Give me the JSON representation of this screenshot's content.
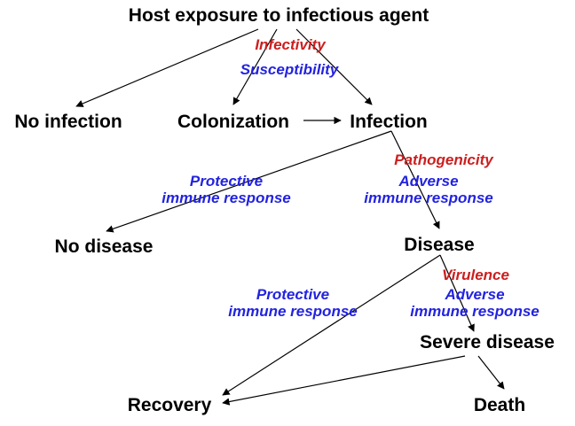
{
  "colors": {
    "node_text": "#000000",
    "factor_red": "#cc1f1f",
    "response_blue": "#2323e0",
    "arrow": "#000000"
  },
  "nodes": {
    "exposure": "Host exposure to infectious agent",
    "no_infection": "No infection",
    "colonization": "Colonization",
    "infection": "Infection",
    "no_disease": "No disease",
    "disease": "Disease",
    "severe_disease": "Severe disease",
    "recovery": "Recovery",
    "death": "Death"
  },
  "labels": {
    "infectivity": "Infectivity",
    "susceptibility": "Susceptibility",
    "pathogenicity": "Pathogenicity",
    "virulence": "Virulence",
    "protective_1": [
      "Protective",
      "immune response"
    ],
    "adverse_1": [
      "Adverse",
      "immune response"
    ],
    "protective_2": [
      "Protective",
      "immune response"
    ],
    "adverse_2": [
      "Adverse",
      "immune  response"
    ]
  },
  "edges": [
    {
      "from": "exposure",
      "to": "no_infection"
    },
    {
      "from": "exposure",
      "to": "colonization"
    },
    {
      "from": "exposure",
      "to": "infection"
    },
    {
      "from": "colonization",
      "to": "infection"
    },
    {
      "from": "infection",
      "to": "no_disease"
    },
    {
      "from": "infection",
      "to": "disease"
    },
    {
      "from": "disease",
      "to": "recovery"
    },
    {
      "from": "disease",
      "to": "severe_disease"
    },
    {
      "from": "severe_disease",
      "to": "recovery"
    },
    {
      "from": "severe_disease",
      "to": "death"
    }
  ]
}
